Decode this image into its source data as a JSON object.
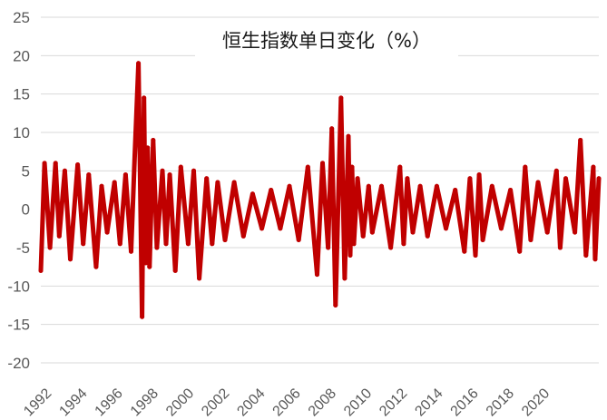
{
  "chart_data": {
    "type": "line",
    "title": "恒生指数单日变化（%）",
    "xlabel": "",
    "ylabel": "",
    "ylim": [
      -20,
      25
    ],
    "y_ticks": [
      25,
      20,
      15,
      10,
      5,
      0,
      -5,
      -10,
      -15,
      -20
    ],
    "x_tick_labels": [
      "1992",
      "1994",
      "1996",
      "1998",
      "2000",
      "2002",
      "2004",
      "2006",
      "2008",
      "2010",
      "2012",
      "2014",
      "2016",
      "2018",
      "2020"
    ],
    "xlim": [
      1992.0,
      2022.3
    ],
    "grid": "horizontal",
    "legend": "none",
    "series": [
      {
        "color": "#c00000",
        "x": [
          1992.0,
          1992.2,
          1992.5,
          1992.8,
          1993.0,
          1993.3,
          1993.6,
          1994.0,
          1994.3,
          1994.6,
          1995.0,
          1995.3,
          1995.6,
          1996.0,
          1996.3,
          1996.6,
          1996.9,
          1997.1,
          1997.3,
          1997.5,
          1997.6,
          1997.7,
          1997.8,
          1997.9,
          1998.1,
          1998.3,
          1998.6,
          1998.8,
          1999.0,
          1999.3,
          1999.6,
          2000.0,
          2000.3,
          2000.6,
          2001.0,
          2001.3,
          2001.6,
          2002.0,
          2002.5,
          2003.0,
          2003.5,
          2004.0,
          2004.5,
          2005.0,
          2005.5,
          2006.0,
          2006.5,
          2007.0,
          2007.3,
          2007.6,
          2007.8,
          2008.0,
          2008.3,
          2008.5,
          2008.7,
          2008.8,
          2008.9,
          2009.0,
          2009.2,
          2009.5,
          2009.8,
          2010.0,
          2010.5,
          2011.0,
          2011.5,
          2011.7,
          2011.9,
          2012.2,
          2012.6,
          2013.0,
          2013.5,
          2014.0,
          2014.5,
          2015.0,
          2015.3,
          2015.6,
          2015.8,
          2016.0,
          2016.5,
          2017.0,
          2017.5,
          2018.0,
          2018.3,
          2018.6,
          2019.0,
          2019.5,
          2020.0,
          2020.2,
          2020.5,
          2021.0,
          2021.3,
          2021.6,
          2022.0,
          2022.1,
          2022.3
        ],
        "values": [
          -8.0,
          6.0,
          -5.0,
          6.0,
          -3.5,
          5.0,
          -6.5,
          5.8,
          -4.5,
          4.5,
          -7.5,
          3.0,
          -3.0,
          3.5,
          -4.5,
          4.5,
          -5.5,
          7.0,
          19.0,
          -14.0,
          14.5,
          -7.0,
          8.0,
          -7.5,
          9.0,
          -5.0,
          5.0,
          -4.5,
          4.5,
          -8.0,
          5.5,
          -4.5,
          5.0,
          -9.0,
          4.0,
          -4.5,
          3.5,
          -4.0,
          3.5,
          -3.5,
          2.0,
          -2.5,
          2.5,
          -2.5,
          3.0,
          -4.0,
          5.5,
          -8.5,
          6.0,
          -5.0,
          10.5,
          -12.5,
          14.5,
          -9.0,
          9.5,
          -6.0,
          5.5,
          -4.5,
          4.0,
          -3.5,
          3.0,
          -3.0,
          3.0,
          -5.0,
          5.5,
          -4.5,
          4.0,
          -3.0,
          3.0,
          -3.5,
          3.0,
          -2.5,
          2.5,
          -5.5,
          4.0,
          -6.0,
          4.5,
          -4.0,
          3.0,
          -2.5,
          2.5,
          -5.5,
          5.5,
          -4.0,
          3.5,
          -3.0,
          5.0,
          -5.0,
          4.0,
          -3.0,
          9.0,
          -6.0,
          5.5,
          -6.5,
          4.0
        ]
      }
    ]
  }
}
